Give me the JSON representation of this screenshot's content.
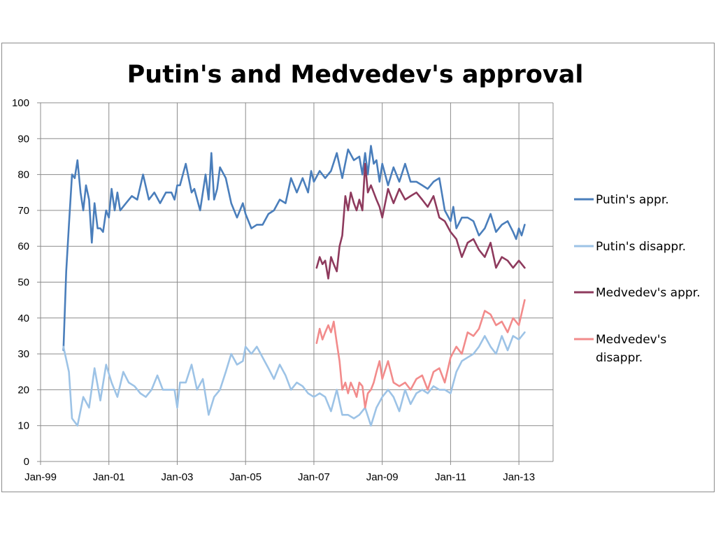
{
  "chart_data": {
    "type": "line",
    "title": "Putin's and Medvedev's approval",
    "xlabel": "",
    "ylabel": "",
    "ylim": [
      0,
      100
    ],
    "y_ticks": [
      "0",
      "10",
      "20",
      "30",
      "40",
      "50",
      "60",
      "70",
      "80",
      "90",
      "100"
    ],
    "x_ticks": [
      "Jan-99",
      "Jan-01",
      "Jan-03",
      "Jan-05",
      "Jan-07",
      "Jan-09",
      "Jan-11",
      "Jan-13"
    ],
    "x_tick_values": [
      1999.0,
      2001.0,
      2003.0,
      2005.0,
      2007.0,
      2009.0,
      2011.0,
      2013.0
    ],
    "xlim": [
      1999.0,
      2014.0
    ],
    "grid": true,
    "legend_position": "right",
    "series": [
      {
        "name": "Putin's appr.",
        "color": "#4a7ebb",
        "x": [
          1999.67,
          1999.75,
          1999.83,
          1999.92,
          2000.0,
          2000.08,
          2000.17,
          2000.25,
          2000.33,
          2000.42,
          2000.5,
          2000.58,
          2000.67,
          2000.75,
          2000.83,
          2000.92,
          2001.0,
          2001.08,
          2001.17,
          2001.25,
          2001.33,
          2001.5,
          2001.67,
          2001.83,
          2002.0,
          2002.17,
          2002.33,
          2002.5,
          2002.67,
          2002.83,
          2002.92,
          2003.0,
          2003.08,
          2003.25,
          2003.42,
          2003.5,
          2003.67,
          2003.83,
          2003.92,
          2004.0,
          2004.08,
          2004.17,
          2004.25,
          2004.42,
          2004.58,
          2004.75,
          2004.92,
          2005.0,
          2005.17,
          2005.33,
          2005.5,
          2005.67,
          2005.83,
          2006.0,
          2006.17,
          2006.33,
          2006.5,
          2006.67,
          2006.83,
          2006.92,
          2007.0,
          2007.17,
          2007.33,
          2007.5,
          2007.67,
          2007.83,
          2008.0,
          2008.17,
          2008.33,
          2008.42,
          2008.5,
          2008.58,
          2008.67,
          2008.75,
          2008.83,
          2008.92,
          2009.0,
          2009.17,
          2009.33,
          2009.5,
          2009.67,
          2009.83,
          2010.0,
          2010.17,
          2010.33,
          2010.5,
          2010.67,
          2010.83,
          2011.0,
          2011.08,
          2011.17,
          2011.33,
          2011.5,
          2011.67,
          2011.83,
          2012.0,
          2012.17,
          2012.33,
          2012.5,
          2012.67,
          2012.83,
          2012.92,
          2013.0,
          2013.08,
          2013.17
        ],
        "values": [
          31,
          53,
          66,
          80,
          79,
          84,
          75,
          70,
          77,
          73,
          61,
          72,
          65,
          65,
          64,
          70,
          68,
          76,
          70,
          75,
          70,
          72,
          74,
          73,
          80,
          73,
          75,
          72,
          75,
          75,
          73,
          77,
          77,
          83,
          75,
          76,
          70,
          80,
          73,
          86,
          73,
          76,
          82,
          79,
          72,
          68,
          72,
          69,
          65,
          66,
          66,
          69,
          70,
          73,
          72,
          79,
          75,
          79,
          75,
          81,
          78,
          81,
          79,
          81,
          86,
          79,
          87,
          84,
          85,
          80,
          86,
          80,
          88,
          83,
          84,
          78,
          83,
          77,
          82,
          78,
          83,
          78,
          78,
          77,
          76,
          78,
          79,
          70,
          67,
          71,
          65,
          68,
          68,
          67,
          63,
          65,
          69,
          64,
          66,
          67,
          64,
          62,
          65,
          63,
          66
        ]
      },
      {
        "name": "Putin's disappr.",
        "color": "#9dc3e6",
        "x": [
          1999.67,
          1999.83,
          1999.92,
          2000.08,
          2000.25,
          2000.42,
          2000.58,
          2000.75,
          2000.92,
          2001.08,
          2001.25,
          2001.42,
          2001.58,
          2001.75,
          2001.92,
          2002.08,
          2002.25,
          2002.42,
          2002.58,
          2002.75,
          2002.92,
          2003.0,
          2003.08,
          2003.25,
          2003.42,
          2003.58,
          2003.75,
          2003.92,
          2004.08,
          2004.25,
          2004.42,
          2004.58,
          2004.75,
          2004.92,
          2005.0,
          2005.17,
          2005.33,
          2005.5,
          2005.67,
          2005.83,
          2006.0,
          2006.17,
          2006.33,
          2006.5,
          2006.67,
          2006.83,
          2007.0,
          2007.17,
          2007.33,
          2007.5,
          2007.67,
          2007.83,
          2008.0,
          2008.17,
          2008.33,
          2008.5,
          2008.67,
          2008.83,
          2009.0,
          2009.17,
          2009.33,
          2009.5,
          2009.67,
          2009.83,
          2010.0,
          2010.17,
          2010.33,
          2010.5,
          2010.67,
          2010.83,
          2011.0,
          2011.17,
          2011.33,
          2011.5,
          2011.67,
          2011.83,
          2012.0,
          2012.17,
          2012.33,
          2012.5,
          2012.67,
          2012.83,
          2013.0,
          2013.17
        ],
        "values": [
          32,
          25,
          12,
          10,
          18,
          15,
          26,
          17,
          27,
          22,
          18,
          25,
          22,
          21,
          19,
          18,
          20,
          24,
          20,
          20,
          20,
          15,
          22,
          22,
          27,
          20,
          23,
          13,
          18,
          20,
          25,
          30,
          27,
          28,
          32,
          30,
          32,
          29,
          26,
          23,
          27,
          24,
          20,
          22,
          21,
          19,
          18,
          19,
          18,
          14,
          20,
          13,
          13,
          12,
          13,
          15,
          10,
          15,
          18,
          20,
          18,
          14,
          20,
          16,
          19,
          20,
          19,
          21,
          20,
          20,
          19,
          25,
          28,
          29,
          30,
          32,
          35,
          32,
          30,
          35,
          31,
          35,
          34,
          36
        ]
      },
      {
        "name": "Medvedev's appr.",
        "color": "#8e3a5d",
        "x": [
          2007.08,
          2007.17,
          2007.25,
          2007.33,
          2007.42,
          2007.5,
          2007.58,
          2007.67,
          2007.75,
          2007.83,
          2007.92,
          2008.0,
          2008.08,
          2008.17,
          2008.25,
          2008.33,
          2008.42,
          2008.5,
          2008.58,
          2008.67,
          2008.75,
          2008.83,
          2008.92,
          2009.0,
          2009.17,
          2009.33,
          2009.5,
          2009.67,
          2009.83,
          2010.0,
          2010.17,
          2010.33,
          2010.5,
          2010.67,
          2010.83,
          2011.0,
          2011.17,
          2011.33,
          2011.5,
          2011.67,
          2011.83,
          2012.0,
          2012.17,
          2012.33,
          2012.5,
          2012.67,
          2012.83,
          2013.0,
          2013.17
        ],
        "values": [
          54,
          57,
          55,
          56,
          51,
          57,
          55,
          53,
          60,
          63,
          74,
          70,
          75,
          72,
          70,
          73,
          70,
          83,
          75,
          77,
          75,
          73,
          71,
          68,
          76,
          72,
          76,
          73,
          74,
          75,
          73,
          71,
          74,
          68,
          67,
          64,
          62,
          57,
          61,
          62,
          59,
          57,
          61,
          54,
          57,
          56,
          54,
          56,
          54
        ]
      },
      {
        "name": "Medvedev's disappr.",
        "color": "#f28b8b",
        "x": [
          2007.08,
          2007.17,
          2007.25,
          2007.33,
          2007.42,
          2007.5,
          2007.58,
          2007.67,
          2007.75,
          2007.83,
          2007.92,
          2008.0,
          2008.08,
          2008.17,
          2008.25,
          2008.33,
          2008.42,
          2008.5,
          2008.58,
          2008.67,
          2008.75,
          2008.83,
          2008.92,
          2009.0,
          2009.17,
          2009.33,
          2009.5,
          2009.67,
          2009.83,
          2010.0,
          2010.17,
          2010.33,
          2010.5,
          2010.67,
          2010.83,
          2011.0,
          2011.17,
          2011.33,
          2011.5,
          2011.67,
          2011.83,
          2012.0,
          2012.17,
          2012.33,
          2012.5,
          2012.67,
          2012.83,
          2013.0,
          2013.17
        ],
        "values": [
          33,
          37,
          34,
          36,
          38,
          36,
          39,
          33,
          28,
          20,
          22,
          19,
          22,
          20,
          18,
          22,
          21,
          15,
          19,
          20,
          22,
          25,
          28,
          23,
          28,
          22,
          21,
          22,
          20,
          23,
          24,
          20,
          25,
          26,
          22,
          29,
          32,
          30,
          36,
          35,
          37,
          42,
          41,
          38,
          39,
          36,
          40,
          38,
          45
        ]
      }
    ]
  }
}
